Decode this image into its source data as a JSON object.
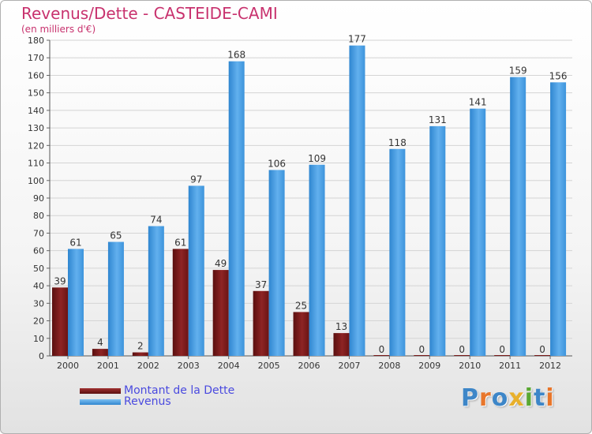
{
  "chart_data": {
    "type": "bar",
    "title": "Revenus/Dette - CASTEIDE-CAMI",
    "subtitle": "(en milliers d'€)",
    "categories": [
      "2000",
      "2001",
      "2002",
      "2003",
      "2004",
      "2005",
      "2006",
      "2007",
      "2008",
      "2009",
      "2010",
      "2011",
      "2012"
    ],
    "series": [
      {
        "name": "Montant de la Dette",
        "color": "#7a1a1a",
        "values": [
          39,
          4,
          2,
          61,
          49,
          37,
          25,
          13,
          0,
          0,
          0,
          0,
          0
        ]
      },
      {
        "name": "Revenus",
        "color": "#4aa0e6",
        "values": [
          61,
          65,
          74,
          97,
          168,
          106,
          109,
          177,
          118,
          131,
          141,
          159,
          156
        ]
      }
    ],
    "ylim": [
      0,
      180
    ],
    "yticks": [
      0,
      10,
      20,
      30,
      40,
      50,
      60,
      70,
      80,
      90,
      100,
      110,
      120,
      130,
      140,
      150,
      160,
      170,
      180
    ],
    "grid": true,
    "legend_position": "bottom-left"
  },
  "logo": {
    "letters": [
      {
        "ch": "P",
        "color": "#3d86c8"
      },
      {
        "ch": "r",
        "color": "#e8762b"
      },
      {
        "ch": "o",
        "color": "#3d86c8"
      },
      {
        "ch": "x",
        "color": "#e8b02b"
      },
      {
        "ch": "i",
        "color": "#5aa832"
      },
      {
        "ch": "t",
        "color": "#3d86c8"
      },
      {
        "ch": "i",
        "color": "#e8762b"
      }
    ]
  }
}
